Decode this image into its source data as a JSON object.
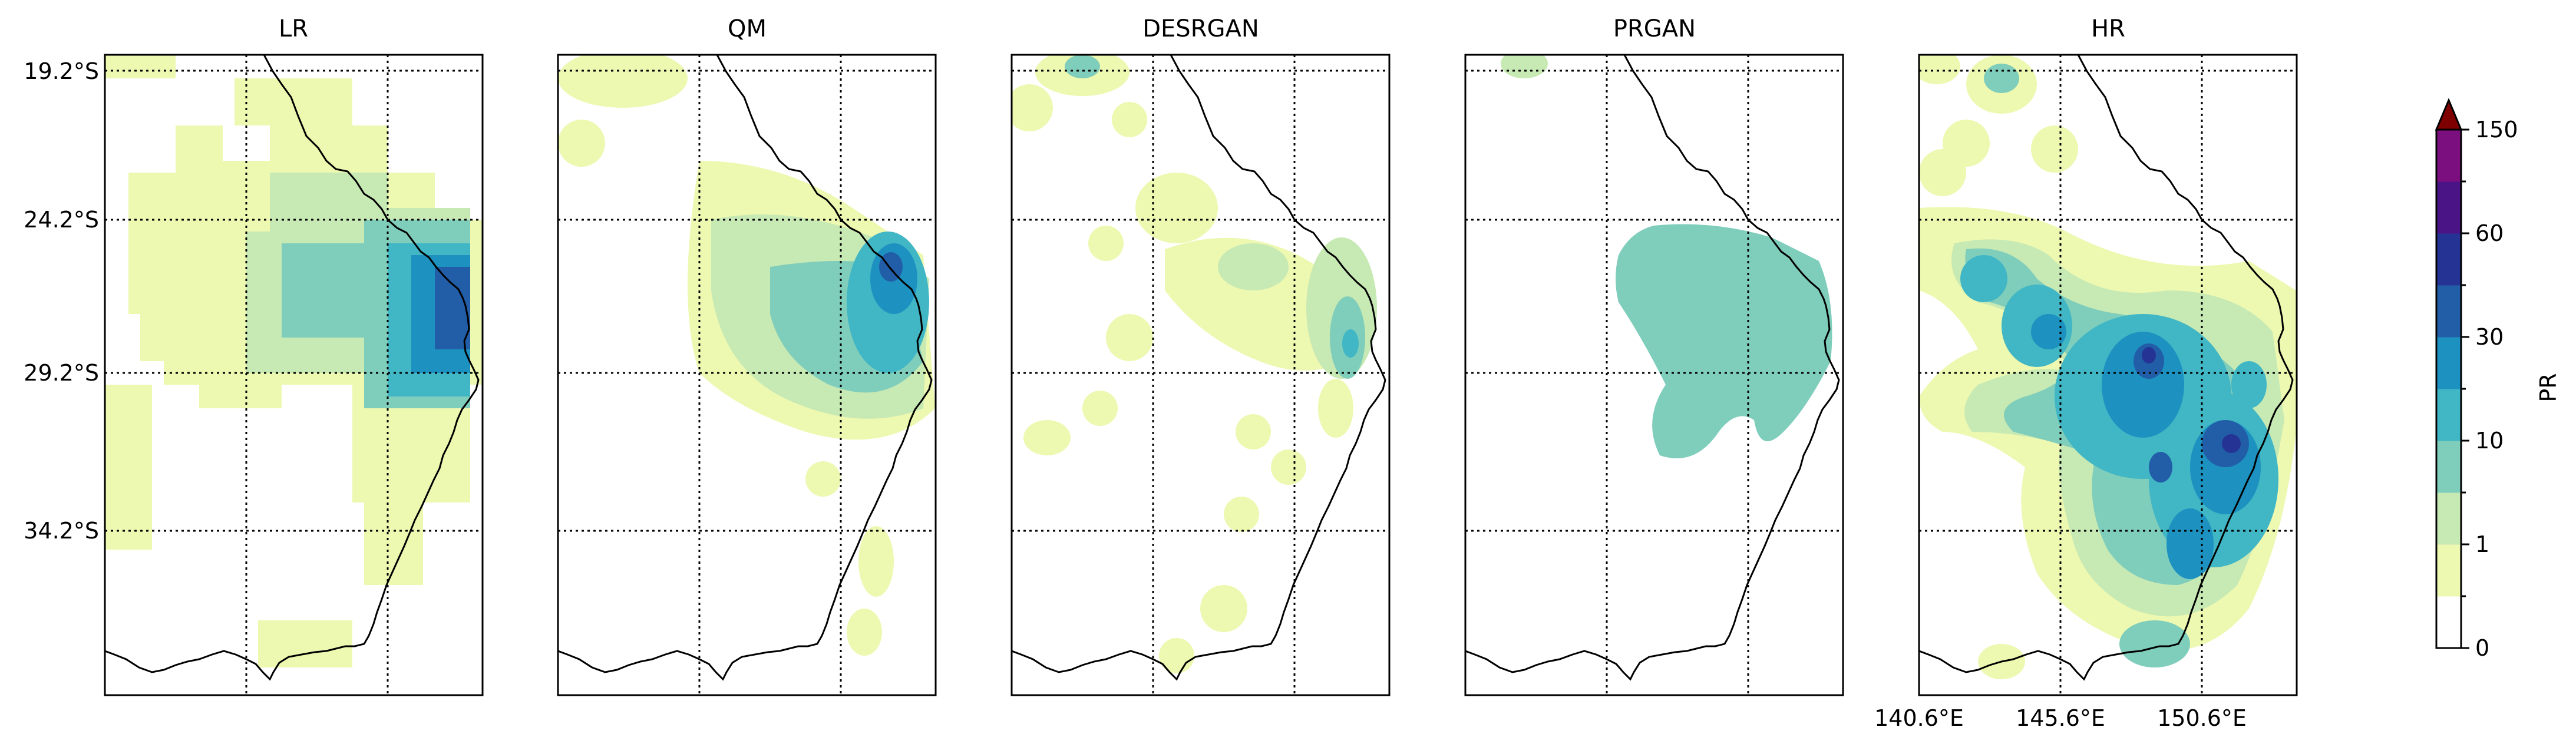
{
  "chart_data": {
    "type": "heatmap",
    "panels": [
      {
        "title": "LR",
        "show_lat_labels": true,
        "show_lon_labels": false
      },
      {
        "title": "QM",
        "show_lat_labels": false,
        "show_lon_labels": false
      },
      {
        "title": "DESRGAN",
        "show_lat_labels": false,
        "show_lon_labels": false
      },
      {
        "title": "PRGAN",
        "show_lat_labels": false,
        "show_lon_labels": false
      },
      {
        "title": "HR",
        "show_lat_labels": false,
        "show_lon_labels": true
      }
    ],
    "lat_ticks": [
      "19.2°S",
      "24.2°S",
      "29.2°S",
      "34.2°S"
    ],
    "lon_ticks": [
      "140.6°E",
      "145.6°E",
      "150.6°E"
    ],
    "grid": true,
    "colorbar": {
      "label": "PR",
      "tick_labels": [
        "0",
        "1",
        "10",
        "30",
        "60",
        "150"
      ],
      "colors": [
        "#ffffff",
        "#edf8b1",
        "#c7e9b4",
        "#7fcdbb",
        "#41b6c4",
        "#1d91c0",
        "#225ea8",
        "#253494",
        "#4a1486",
        "#7b0f7f"
      ],
      "extend_color": "#7f0000",
      "extend": "max"
    }
  }
}
